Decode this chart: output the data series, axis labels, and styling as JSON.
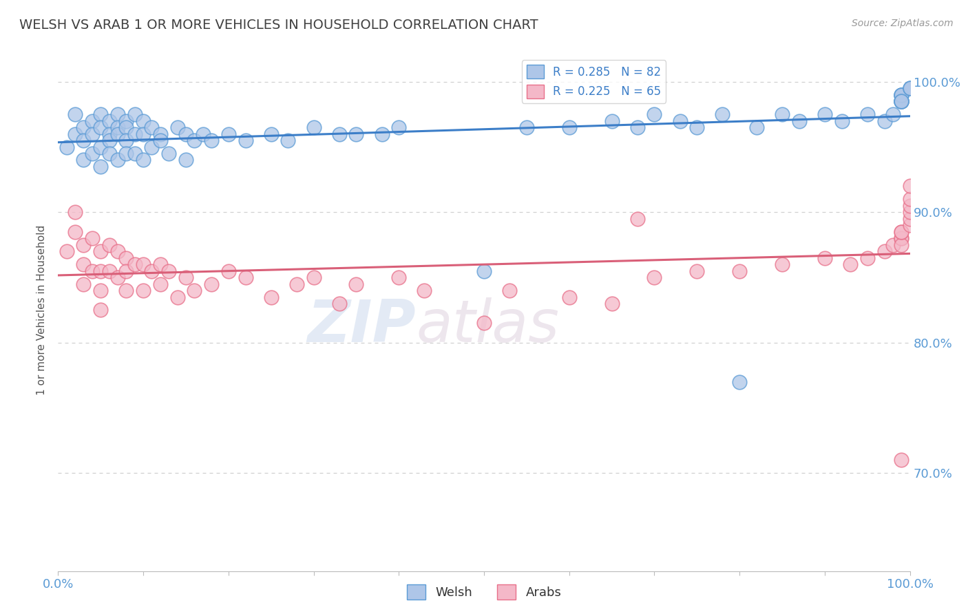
{
  "title": "WELSH VS ARAB 1 OR MORE VEHICLES IN HOUSEHOLD CORRELATION CHART",
  "source_text": "Source: ZipAtlas.com",
  "ylabel": "1 or more Vehicles in Household",
  "watermark_zip": "ZIP",
  "watermark_atlas": "atlas",
  "legend_welsh": "Welsh",
  "legend_arab": "Arabs",
  "welsh_R": 0.285,
  "welsh_N": 82,
  "arab_R": 0.225,
  "arab_N": 65,
  "welsh_color": "#aec6e8",
  "arab_color": "#f4b8c8",
  "welsh_edge_color": "#5b9bd5",
  "arab_edge_color": "#e8708a",
  "welsh_line_color": "#3c7ec8",
  "arab_line_color": "#d95f78",
  "legend_text_color": "#3c7ec8",
  "title_color": "#404040",
  "axis_tick_color": "#5b9bd5",
  "grid_color": "#d0d0d0",
  "xlim": [
    0.0,
    1.0
  ],
  "ylim": [
    0.625,
    1.025
  ],
  "yticks": [
    0.7,
    0.8,
    0.9,
    1.0
  ],
  "ytick_labels": [
    "70.0%",
    "80.0%",
    "90.0%",
    "100.0%"
  ],
  "welsh_x": [
    0.01,
    0.02,
    0.02,
    0.03,
    0.03,
    0.03,
    0.04,
    0.04,
    0.04,
    0.05,
    0.05,
    0.05,
    0.05,
    0.06,
    0.06,
    0.06,
    0.06,
    0.07,
    0.07,
    0.07,
    0.07,
    0.08,
    0.08,
    0.08,
    0.08,
    0.09,
    0.09,
    0.09,
    0.1,
    0.1,
    0.1,
    0.11,
    0.11,
    0.12,
    0.12,
    0.13,
    0.14,
    0.15,
    0.15,
    0.16,
    0.17,
    0.18,
    0.2,
    0.22,
    0.25,
    0.27,
    0.3,
    0.33,
    0.35,
    0.38,
    0.4,
    0.5,
    0.55,
    0.6,
    0.65,
    0.68,
    0.7,
    0.73,
    0.75,
    0.78,
    0.8,
    0.82,
    0.85,
    0.87,
    0.9,
    0.92,
    0.95,
    0.97,
    0.98,
    0.99,
    0.99,
    0.99,
    0.99,
    0.99,
    0.99,
    0.99,
    0.99,
    0.99,
    0.99,
    1.0,
    1.0,
    1.0
  ],
  "welsh_y": [
    0.95,
    0.96,
    0.975,
    0.965,
    0.955,
    0.94,
    0.97,
    0.96,
    0.945,
    0.975,
    0.965,
    0.95,
    0.935,
    0.97,
    0.96,
    0.955,
    0.945,
    0.975,
    0.965,
    0.96,
    0.94,
    0.97,
    0.965,
    0.955,
    0.945,
    0.975,
    0.96,
    0.945,
    0.97,
    0.96,
    0.94,
    0.965,
    0.95,
    0.96,
    0.955,
    0.945,
    0.965,
    0.96,
    0.94,
    0.955,
    0.96,
    0.955,
    0.96,
    0.955,
    0.96,
    0.955,
    0.965,
    0.96,
    0.96,
    0.96,
    0.965,
    0.855,
    0.965,
    0.965,
    0.97,
    0.965,
    0.975,
    0.97,
    0.965,
    0.975,
    0.77,
    0.965,
    0.975,
    0.97,
    0.975,
    0.97,
    0.975,
    0.97,
    0.975,
    0.985,
    0.985,
    0.985,
    0.985,
    0.99,
    0.99,
    0.99,
    0.99,
    0.985,
    0.985,
    0.995,
    0.995,
    0.995
  ],
  "arab_x": [
    0.01,
    0.02,
    0.02,
    0.03,
    0.03,
    0.03,
    0.04,
    0.04,
    0.05,
    0.05,
    0.05,
    0.05,
    0.06,
    0.06,
    0.07,
    0.07,
    0.08,
    0.08,
    0.08,
    0.09,
    0.1,
    0.1,
    0.11,
    0.12,
    0.12,
    0.13,
    0.14,
    0.15,
    0.16,
    0.18,
    0.2,
    0.22,
    0.25,
    0.28,
    0.3,
    0.33,
    0.35,
    0.4,
    0.43,
    0.5,
    0.53,
    0.6,
    0.65,
    0.68,
    0.7,
    0.75,
    0.8,
    0.85,
    0.9,
    0.93,
    0.95,
    0.97,
    0.98,
    0.99,
    0.99,
    0.99,
    0.99,
    0.99,
    0.99,
    1.0,
    1.0,
    1.0,
    1.0,
    1.0,
    1.0
  ],
  "arab_y": [
    0.87,
    0.885,
    0.9,
    0.875,
    0.86,
    0.845,
    0.88,
    0.855,
    0.87,
    0.855,
    0.84,
    0.825,
    0.875,
    0.855,
    0.87,
    0.85,
    0.865,
    0.855,
    0.84,
    0.86,
    0.86,
    0.84,
    0.855,
    0.86,
    0.845,
    0.855,
    0.835,
    0.85,
    0.84,
    0.845,
    0.855,
    0.85,
    0.835,
    0.845,
    0.85,
    0.83,
    0.845,
    0.85,
    0.84,
    0.815,
    0.84,
    0.835,
    0.83,
    0.895,
    0.85,
    0.855,
    0.855,
    0.86,
    0.865,
    0.86,
    0.865,
    0.87,
    0.875,
    0.88,
    0.88,
    0.875,
    0.885,
    0.885,
    0.71,
    0.89,
    0.895,
    0.9,
    0.905,
    0.91,
    0.92
  ]
}
